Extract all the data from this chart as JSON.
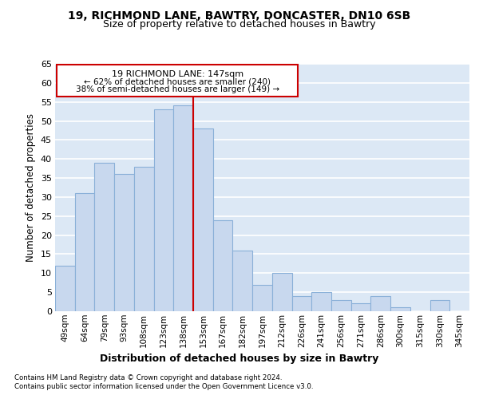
{
  "title_line1": "19, RICHMOND LANE, BAWTRY, DONCASTER, DN10 6SB",
  "title_line2": "Size of property relative to detached houses in Bawtry",
  "xlabel": "Distribution of detached houses by size in Bawtry",
  "ylabel": "Number of detached properties",
  "bar_labels": [
    "49sqm",
    "64sqm",
    "79sqm",
    "93sqm",
    "108sqm",
    "123sqm",
    "138sqm",
    "153sqm",
    "167sqm",
    "182sqm",
    "197sqm",
    "212sqm",
    "226sqm",
    "241sqm",
    "256sqm",
    "271sqm",
    "286sqm",
    "300sqm",
    "315sqm",
    "330sqm",
    "345sqm"
  ],
  "bar_values": [
    12,
    31,
    39,
    36,
    38,
    53,
    54,
    48,
    24,
    16,
    7,
    10,
    4,
    5,
    3,
    2,
    4,
    1,
    0,
    3,
    0
  ],
  "bar_color": "#c8d8ee",
  "bar_edge_color": "#8ab0d8",
  "background_color": "#dce8f5",
  "fig_background_color": "#ffffff",
  "grid_color": "#ffffff",
  "annotation_box_text_line1": "19 RICHMOND LANE: 147sqm",
  "annotation_box_text_line2": "← 62% of detached houses are smaller (240)",
  "annotation_box_text_line3": "38% of semi-detached houses are larger (149) →",
  "vline_position": 6.5,
  "vline_color": "#cc0000",
  "ylim": [
    0,
    65
  ],
  "yticks": [
    0,
    5,
    10,
    15,
    20,
    25,
    30,
    35,
    40,
    45,
    50,
    55,
    60,
    65
  ],
  "footnote_line1": "Contains HM Land Registry data © Crown copyright and database right 2024.",
  "footnote_line2": "Contains public sector information licensed under the Open Government Licence v3.0."
}
